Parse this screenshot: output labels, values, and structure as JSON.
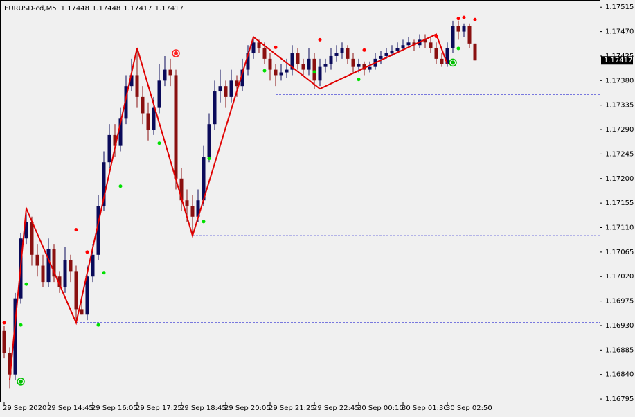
{
  "chart_data": {
    "type": "candlestick",
    "symbol": "EURUSD-cd,M5",
    "bull_color": "#0a0a5a",
    "bear_color": "#8a1010",
    "ylim": [
      1.1679,
      1.17528
    ],
    "yticks": [
      {
        "value": 1.17515,
        "label": "1.17515"
      },
      {
        "value": 1.1747,
        "label": "1.17470"
      },
      {
        "value": 1.17425,
        "label": "1.17425"
      },
      {
        "value": 1.1738,
        "label": "1.17380"
      },
      {
        "value": 1.17335,
        "label": "1.17335"
      },
      {
        "value": 1.1729,
        "label": "1.17290"
      },
      {
        "value": 1.17245,
        "label": "1.17245"
      },
      {
        "value": 1.172,
        "label": "1.17200"
      },
      {
        "value": 1.17155,
        "label": "1.17155"
      },
      {
        "value": 1.1711,
        "label": "1.17110"
      },
      {
        "value": 1.17065,
        "label": "1.17065"
      },
      {
        "value": 1.1702,
        "label": "1.17020"
      },
      {
        "value": 1.16975,
        "label": "1.16975"
      },
      {
        "value": 1.1693,
        "label": "1.16930"
      },
      {
        "value": 1.16885,
        "label": "1.16885"
      },
      {
        "value": 1.1684,
        "label": "1.16840"
      },
      {
        "value": 1.16795,
        "label": "1.16795"
      }
    ],
    "xticks": [
      {
        "value": 0,
        "label": "29 Sep 2020"
      },
      {
        "value": 8,
        "label": "29 Sep 14:45"
      },
      {
        "value": 16,
        "label": "29 Sep 16:05"
      },
      {
        "value": 24,
        "label": "29 Sep 17:25"
      },
      {
        "value": 32,
        "label": "29 Sep 18:45"
      },
      {
        "value": 40,
        "label": "29 Sep 20:05"
      },
      {
        "value": 48,
        "label": "29 Sep 21:25"
      },
      {
        "value": 56,
        "label": "29 Sep 22:45"
      },
      {
        "value": 64,
        "label": "30 Sep 00:10"
      },
      {
        "value": 72,
        "label": "30 Sep 01:30"
      },
      {
        "value": 80,
        "label": "30 Sep 02:50"
      }
    ],
    "candles": [
      [
        1.1692,
        1.1693,
        1.1687,
        1.1688
      ],
      [
        1.1688,
        1.1689,
        1.16815,
        1.1684
      ],
      [
        1.1684,
        1.1699,
        1.1683,
        1.1698
      ],
      [
        1.1698,
        1.171,
        1.1697,
        1.1709
      ],
      [
        1.1709,
        1.17145,
        1.1708,
        1.1712
      ],
      [
        1.1712,
        1.1713,
        1.1704,
        1.1706
      ],
      [
        1.1706,
        1.1708,
        1.1702,
        1.1704
      ],
      [
        1.1704,
        1.1706,
        1.17,
        1.1701
      ],
      [
        1.1701,
        1.1709,
        1.17,
        1.1707
      ],
      [
        1.1707,
        1.1708,
        1.1701,
        1.1702
      ],
      [
        1.1702,
        1.1703,
        1.1699,
        1.17
      ],
      [
        1.17,
        1.17075,
        1.1699,
        1.1705
      ],
      [
        1.1705,
        1.1706,
        1.1701,
        1.1703
      ],
      [
        1.1703,
        1.1704,
        1.16935,
        1.1696
      ],
      [
        1.1696,
        1.1698,
        1.1695,
        1.1695
      ],
      [
        1.1695,
        1.1704,
        1.1694,
        1.1702
      ],
      [
        1.1702,
        1.1708,
        1.1701,
        1.1706
      ],
      [
        1.1706,
        1.1717,
        1.1705,
        1.1715
      ],
      [
        1.1715,
        1.1725,
        1.1714,
        1.1723
      ],
      [
        1.1723,
        1.173,
        1.1722,
        1.1728
      ],
      [
        1.1728,
        1.173,
        1.1724,
        1.1726
      ],
      [
        1.1726,
        1.1733,
        1.1725,
        1.1731
      ],
      [
        1.1731,
        1.1739,
        1.173,
        1.1737
      ],
      [
        1.1737,
        1.1742,
        1.1736,
        1.1739
      ],
      [
        1.1739,
        1.1744,
        1.1733,
        1.1735
      ],
      [
        1.1735,
        1.1737,
        1.173,
        1.1732
      ],
      [
        1.1732,
        1.1734,
        1.1727,
        1.1729
      ],
      [
        1.1729,
        1.1735,
        1.1728,
        1.1733
      ],
      [
        1.1733,
        1.1741,
        1.1732,
        1.1738
      ],
      [
        1.1738,
        1.17425,
        1.1737,
        1.174
      ],
      [
        1.174,
        1.1742,
        1.1737,
        1.1739
      ],
      [
        1.1739,
        1.174,
        1.1718,
        1.172
      ],
      [
        1.172,
        1.1722,
        1.1714,
        1.1716
      ],
      [
        1.1716,
        1.1718,
        1.1712,
        1.1715
      ],
      [
        1.1715,
        1.1717,
        1.17095,
        1.1713
      ],
      [
        1.1713,
        1.1718,
        1.1712,
        1.1716
      ],
      [
        1.1716,
        1.1726,
        1.1715,
        1.1724
      ],
      [
        1.1724,
        1.1732,
        1.1723,
        1.173
      ],
      [
        1.173,
        1.1738,
        1.1729,
        1.1736
      ],
      [
        1.1736,
        1.174,
        1.1734,
        1.1737
      ],
      [
        1.1737,
        1.1738,
        1.1733,
        1.1735
      ],
      [
        1.1735,
        1.174,
        1.1734,
        1.1738
      ],
      [
        1.1738,
        1.1739,
        1.1735,
        1.1737
      ],
      [
        1.1737,
        1.1742,
        1.1736,
        1.174
      ],
      [
        1.174,
        1.17445,
        1.1739,
        1.1743
      ],
      [
        1.1743,
        1.1746,
        1.1742,
        1.1745
      ],
      [
        1.1745,
        1.17455,
        1.1743,
        1.1744
      ],
      [
        1.1744,
        1.1745,
        1.1741,
        1.1742
      ],
      [
        1.1742,
        1.1743,
        1.1738,
        1.174
      ],
      [
        1.174,
        1.1741,
        1.1737,
        1.1739
      ],
      [
        1.1739,
        1.1741,
        1.1738,
        1.17395
      ],
      [
        1.17395,
        1.1742,
        1.17385,
        1.174
      ],
      [
        1.174,
        1.17445,
        1.1739,
        1.1743
      ],
      [
        1.1743,
        1.1744,
        1.174,
        1.1741
      ],
      [
        1.1741,
        1.1742,
        1.1739,
        1.174
      ],
      [
        1.174,
        1.1744,
        1.1739,
        1.1742
      ],
      [
        1.1742,
        1.1743,
        1.17365,
        1.1738
      ],
      [
        1.1738,
        1.1742,
        1.1737,
        1.17405
      ],
      [
        1.17405,
        1.1742,
        1.17395,
        1.1741
      ],
      [
        1.1741,
        1.1744,
        1.174,
        1.17425
      ],
      [
        1.17425,
        1.17445,
        1.17415,
        1.1743
      ],
      [
        1.1743,
        1.1745,
        1.1742,
        1.1744
      ],
      [
        1.1744,
        1.17445,
        1.1741,
        1.1742
      ],
      [
        1.1742,
        1.1743,
        1.17395,
        1.17405
      ],
      [
        1.17405,
        1.1742,
        1.17395,
        1.1741
      ],
      [
        1.1741,
        1.17415,
        1.1739,
        1.174
      ],
      [
        1.174,
        1.17415,
        1.17395,
        1.17405
      ],
      [
        1.17405,
        1.1743,
        1.174,
        1.1742
      ],
      [
        1.1742,
        1.17435,
        1.1741,
        1.17425
      ],
      [
        1.17425,
        1.1744,
        1.1742,
        1.1743
      ],
      [
        1.1743,
        1.17445,
        1.17425,
        1.17435
      ],
      [
        1.17435,
        1.1745,
        1.1743,
        1.1744
      ],
      [
        1.1744,
        1.17455,
        1.17435,
        1.17445
      ],
      [
        1.17445,
        1.1746,
        1.1744,
        1.1745
      ],
      [
        1.1745,
        1.17455,
        1.17435,
        1.17445
      ],
      [
        1.17445,
        1.17465,
        1.1744,
        1.17455
      ],
      [
        1.17455,
        1.17465,
        1.1744,
        1.1745
      ],
      [
        1.1745,
        1.1746,
        1.1743,
        1.1744
      ],
      [
        1.1744,
        1.1745,
        1.1741,
        1.1742
      ],
      [
        1.1742,
        1.1743,
        1.17405,
        1.1741
      ],
      [
        1.1741,
        1.1745,
        1.17405,
        1.1744
      ],
      [
        1.1744,
        1.1749,
        1.1743,
        1.1748
      ],
      [
        1.1748,
        1.1749,
        1.17455,
        1.1747
      ],
      [
        1.1747,
        1.17485,
        1.1746,
        1.1748
      ],
      [
        1.1748,
        1.17485,
        1.1744,
        1.17448
      ],
      [
        1.17448,
        1.17448,
        1.17417,
        1.17417
      ]
    ],
    "zigzag": {
      "color": "#e00000",
      "x": [
        1,
        4,
        13,
        24,
        34,
        45,
        57,
        78,
        80
      ],
      "values": [
        1.1683,
        1.17145,
        1.16935,
        1.1744,
        1.17095,
        1.1746,
        1.17365,
        1.17465,
        1.1741
      ]
    },
    "levels": {
      "color": "#0000cc",
      "from": [
        13,
        34,
        49
      ],
      "values": [
        1.16935,
        1.17095,
        1.17355
      ]
    },
    "up_fractals": {
      "color": "#ff0000",
      "x": [
        0,
        13,
        15,
        49,
        57,
        65,
        78,
        82,
        83,
        85
      ],
      "values": [
        1.16935,
        1.17106,
        1.17065,
        1.17441,
        1.17455,
        1.17436,
        1.17461,
        1.17494,
        1.17496,
        1.17492
      ]
    },
    "down_fractals": {
      "color": "#00e000",
      "x": [
        3,
        4,
        17,
        18,
        21,
        28,
        36,
        37,
        47,
        56,
        64,
        82
      ],
      "values": [
        1.16931,
        1.17006,
        1.16931,
        1.17027,
        1.17186,
        1.17265,
        1.17121,
        1.17237,
        1.17398,
        1.17396,
        1.17382,
        1.17439
      ]
    },
    "signals": {
      "colors": [
        "#00c000",
        "#ff2020",
        "#00c000"
      ],
      "x": [
        3,
        31,
        81
      ],
      "values": [
        1.16827,
        1.1743,
        1.17413
      ]
    },
    "current_price": 1.17417
  }
}
